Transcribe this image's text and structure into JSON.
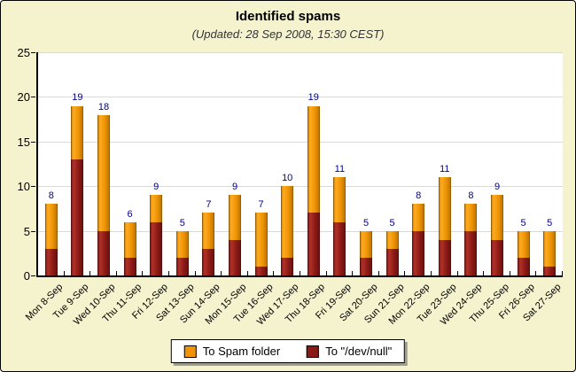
{
  "title": "Identified spams",
  "subtitle": "(Updated: 28 Sep 2008, 15:30 CEST)",
  "colors": {
    "background": "#F5F2CE",
    "plot_background": "#FFFFFF",
    "gridline": "#D9D9D9",
    "axis": "#000000",
    "value_label": "#00008B",
    "spam_folder": "#EE9406",
    "devnull": "#8B1A16"
  },
  "legend": {
    "items": [
      {
        "label": "To Spam folder",
        "color_key": "spam_folder"
      },
      {
        "label": "To \"/dev/null\"",
        "color_key": "devnull"
      }
    ]
  },
  "chart_data": {
    "type": "bar",
    "stacked": true,
    "title": "Identified spams",
    "subtitle": "(Updated: 28 Sep 2008, 15:30 CEST)",
    "categories": [
      "Mon 8-Sep",
      "Tue 9-Sep",
      "Wed 10-Sep",
      "Thu 11-Sep",
      "Fri 12-Sep",
      "Sat 13-Sep",
      "Sun 14-Sep",
      "Mon 15-Sep",
      "Tue 16-Sep",
      "Wed 17-Sep",
      "Thu 18-Sep",
      "Fri 19-Sep",
      "Sat 20-Sep",
      "Sun 21-Sep",
      "Mon 22-Sep",
      "Tue 23-Sep",
      "Wed 24-Sep",
      "Thu 25-Sep",
      "Fri 26-Sep",
      "Sat 27-Sep"
    ],
    "series": [
      {
        "name": "To \"/dev/null\"",
        "color_key": "devnull",
        "values": [
          3,
          13,
          5,
          2,
          6,
          2,
          3,
          4,
          1,
          2,
          7,
          6,
          2,
          3,
          5,
          4,
          5,
          4,
          2,
          1
        ]
      },
      {
        "name": "To Spam folder",
        "color_key": "spam_folder",
        "values": [
          5,
          6,
          13,
          4,
          3,
          3,
          4,
          5,
          6,
          8,
          12,
          5,
          3,
          2,
          3,
          7,
          3,
          5,
          3,
          4
        ]
      }
    ],
    "totals": [
      8,
      19,
      18,
      6,
      9,
      5,
      7,
      9,
      7,
      10,
      19,
      11,
      5,
      5,
      8,
      11,
      8,
      9,
      5,
      5
    ],
    "xlabel": "",
    "ylabel": "",
    "ylim": [
      0,
      25
    ],
    "yticks": [
      0,
      5,
      10,
      15,
      20,
      25
    ],
    "grid": true,
    "legend_position": "bottom-center"
  }
}
